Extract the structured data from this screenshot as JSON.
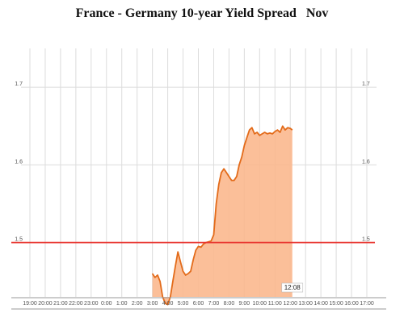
{
  "title": "France - Germany 10-year Yield Spread   Nov",
  "chart_data": {
    "type": "area",
    "title": "France - Germany 10-year Yield Spread   Nov",
    "xlabel": "",
    "ylabel": "",
    "x_ticks": [
      "19:00",
      "20:00",
      "21:00",
      "22:00",
      "23:00",
      "0:00",
      "1:00",
      "2:00",
      "3:00",
      "4:00",
      "5:00",
      "6:00",
      "7:00",
      "8:00",
      "9:00",
      "10:00",
      "11:00",
      "12:00",
      "13:00",
      "14:00",
      "15:00",
      "16:00",
      "17:00"
    ],
    "xlim": [
      "19:00",
      "17:00"
    ],
    "y_ticks": [
      1.5,
      1.6,
      1.7
    ],
    "ylim": [
      1.43,
      1.75
    ],
    "grid": true,
    "series": [
      {
        "name": "",
        "x": [
          "3:00",
          "3:10",
          "3:20",
          "3:30",
          "3:40",
          "3:50",
          "4:00",
          "4:10",
          "4:20",
          "4:30",
          "4:40",
          "4:50",
          "5:00",
          "5:10",
          "5:20",
          "5:30",
          "5:40",
          "5:50",
          "6:00",
          "6:10",
          "6:20",
          "6:30",
          "6:40",
          "6:50",
          "7:00",
          "7:10",
          "7:20",
          "7:30",
          "7:40",
          "7:50",
          "8:00",
          "8:10",
          "8:20",
          "8:30",
          "8:40",
          "8:50",
          "9:00",
          "9:10",
          "9:20",
          "9:30",
          "9:40",
          "9:50",
          "10:00",
          "10:10",
          "10:20",
          "10:30",
          "10:40",
          "10:50",
          "11:00",
          "11:10",
          "11:20",
          "11:30",
          "11:40",
          "11:50",
          "12:00",
          "12:08"
        ],
        "values": [
          1.46,
          1.455,
          1.458,
          1.45,
          1.43,
          1.422,
          1.42,
          1.43,
          1.45,
          1.47,
          1.488,
          1.475,
          1.463,
          1.458,
          1.46,
          1.463,
          1.478,
          1.49,
          1.495,
          1.494,
          1.498,
          1.5,
          1.501,
          1.502,
          1.51,
          1.55,
          1.575,
          1.59,
          1.595,
          1.59,
          1.585,
          1.58,
          1.58,
          1.585,
          1.6,
          1.61,
          1.625,
          1.635,
          1.645,
          1.648,
          1.64,
          1.642,
          1.638,
          1.64,
          1.642,
          1.64,
          1.641,
          1.64,
          1.643,
          1.645,
          1.642,
          1.65,
          1.645,
          1.648,
          1.647,
          1.645
        ]
      }
    ],
    "reference_line": {
      "y": 1.5,
      "color": "#e8342f",
      "labels": [
        "1.5",
        "1.5"
      ]
    },
    "last_time_label": "12:08",
    "colors": {
      "line": "#e36b1a",
      "fill": "#fbb88e",
      "grid": "#dcdcdc"
    }
  }
}
